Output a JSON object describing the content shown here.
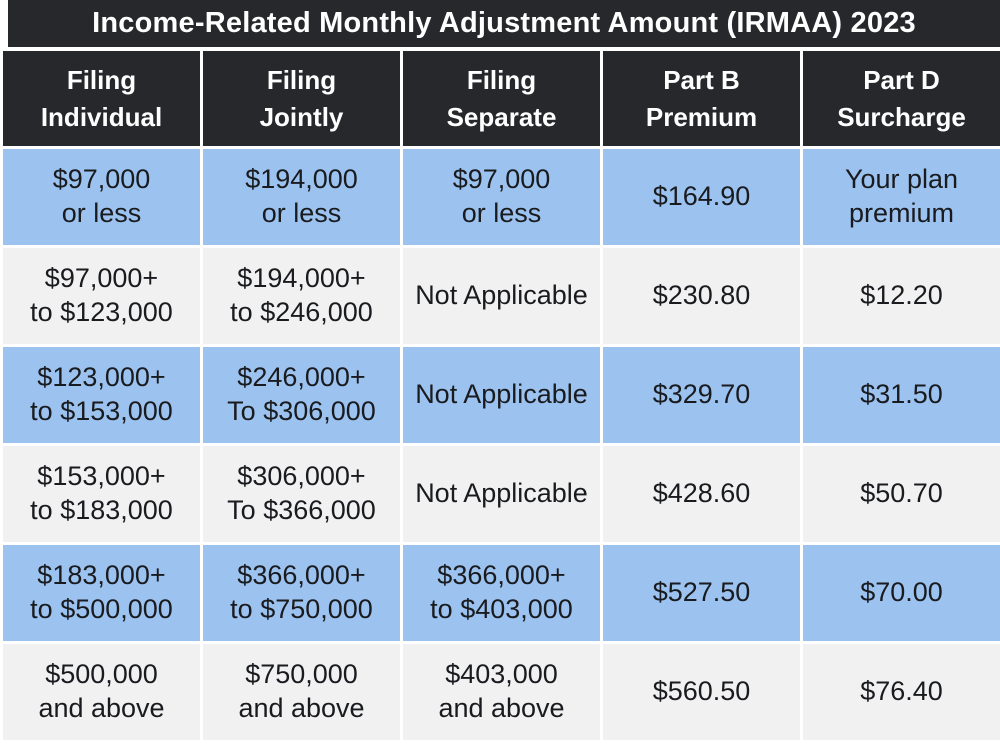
{
  "header": {
    "title": "Income-Related Monthly Adjustment Amount (IRMAA) 2023"
  },
  "table": {
    "columns": [
      {
        "label": "Filing\nIndividual"
      },
      {
        "label": "Filing\nJointly"
      },
      {
        "label": "Filing\nSeparate"
      },
      {
        "label": "Part B\nPremium"
      },
      {
        "label": "Part D\nSurcharge"
      }
    ],
    "rows": [
      {
        "cells": [
          "$97,000\nor less",
          "$194,000\nor less",
          "$97,000\nor less",
          "$164.90",
          "Your plan\npremium"
        ]
      },
      {
        "cells": [
          "$97,000+\nto $123,000",
          "$194,000+\nto $246,000",
          "Not Applicable",
          "$230.80",
          "$12.20"
        ]
      },
      {
        "cells": [
          "$123,000+\nto $153,000",
          "$246,000+\nTo $306,000",
          "Not Applicable",
          "$329.70",
          "$31.50"
        ]
      },
      {
        "cells": [
          "$153,000+\nto $183,000",
          "$306,000+\nTo $366,000",
          "Not Applicable",
          "$428.60",
          "$50.70"
        ]
      },
      {
        "cells": [
          "$183,000+\nto $500,000",
          "$366,000+\nto $750,000",
          "$366,000+\nto $403,000",
          "$527.50",
          "$70.00"
        ]
      },
      {
        "cells": [
          "$500,000\nand above",
          "$750,000\nand above",
          "$403,000\nand above",
          "$560.50",
          "$76.40"
        ]
      }
    ]
  },
  "colors": {
    "dark": "#26282b",
    "blue": "#9cc2f0",
    "gray": "#f1f1f2",
    "header_text": "#ffffff",
    "body_text": "#191b1e",
    "background": "#ffffff"
  },
  "chart_data": {
    "type": "table",
    "title": "Income-Related Monthly Adjustment Amount (IRMAA) 2023",
    "columns": [
      "Filing Individual",
      "Filing Jointly",
      "Filing Separate",
      "Part B Premium",
      "Part D Surcharge"
    ],
    "rows": [
      [
        "$97,000 or less",
        "$194,000 or less",
        "$97,000 or less",
        "$164.90",
        "Your plan premium"
      ],
      [
        "$97,000+ to $123,000",
        "$194,000+ to $246,000",
        "Not Applicable",
        "$230.80",
        "$12.20"
      ],
      [
        "$123,000+ to $153,000",
        "$246,000+ To $306,000",
        "Not Applicable",
        "$329.70",
        "$31.50"
      ],
      [
        "$153,000+ to $183,000",
        "$306,000+ To $366,000",
        "Not Applicable",
        "$428.60",
        "$50.70"
      ],
      [
        "$183,000+ to $500,000",
        "$366,000+ to $750,000",
        "$366,000+ to $403,000",
        "$527.50",
        "$70.00"
      ],
      [
        "$500,000 and above",
        "$750,000 and above",
        "$403,000 and above",
        "$560.50",
        "$76.40"
      ]
    ],
    "part_b_premium_values": [
      164.9,
      230.8,
      329.7,
      428.6,
      527.5,
      560.5
    ],
    "part_d_surcharge_values": [
      null,
      12.2,
      31.5,
      50.7,
      70.0,
      76.4
    ],
    "part_d_surcharge_row1_text": "Your plan premium",
    "row_band_colors": [
      "#9cc2f0",
      "#f1f1f2",
      "#9cc2f0",
      "#f1f1f2",
      "#9cc2f0",
      "#f1f1f2"
    ],
    "layout": {
      "grid": false,
      "legend": "none",
      "header_style": "dark-bar"
    }
  }
}
